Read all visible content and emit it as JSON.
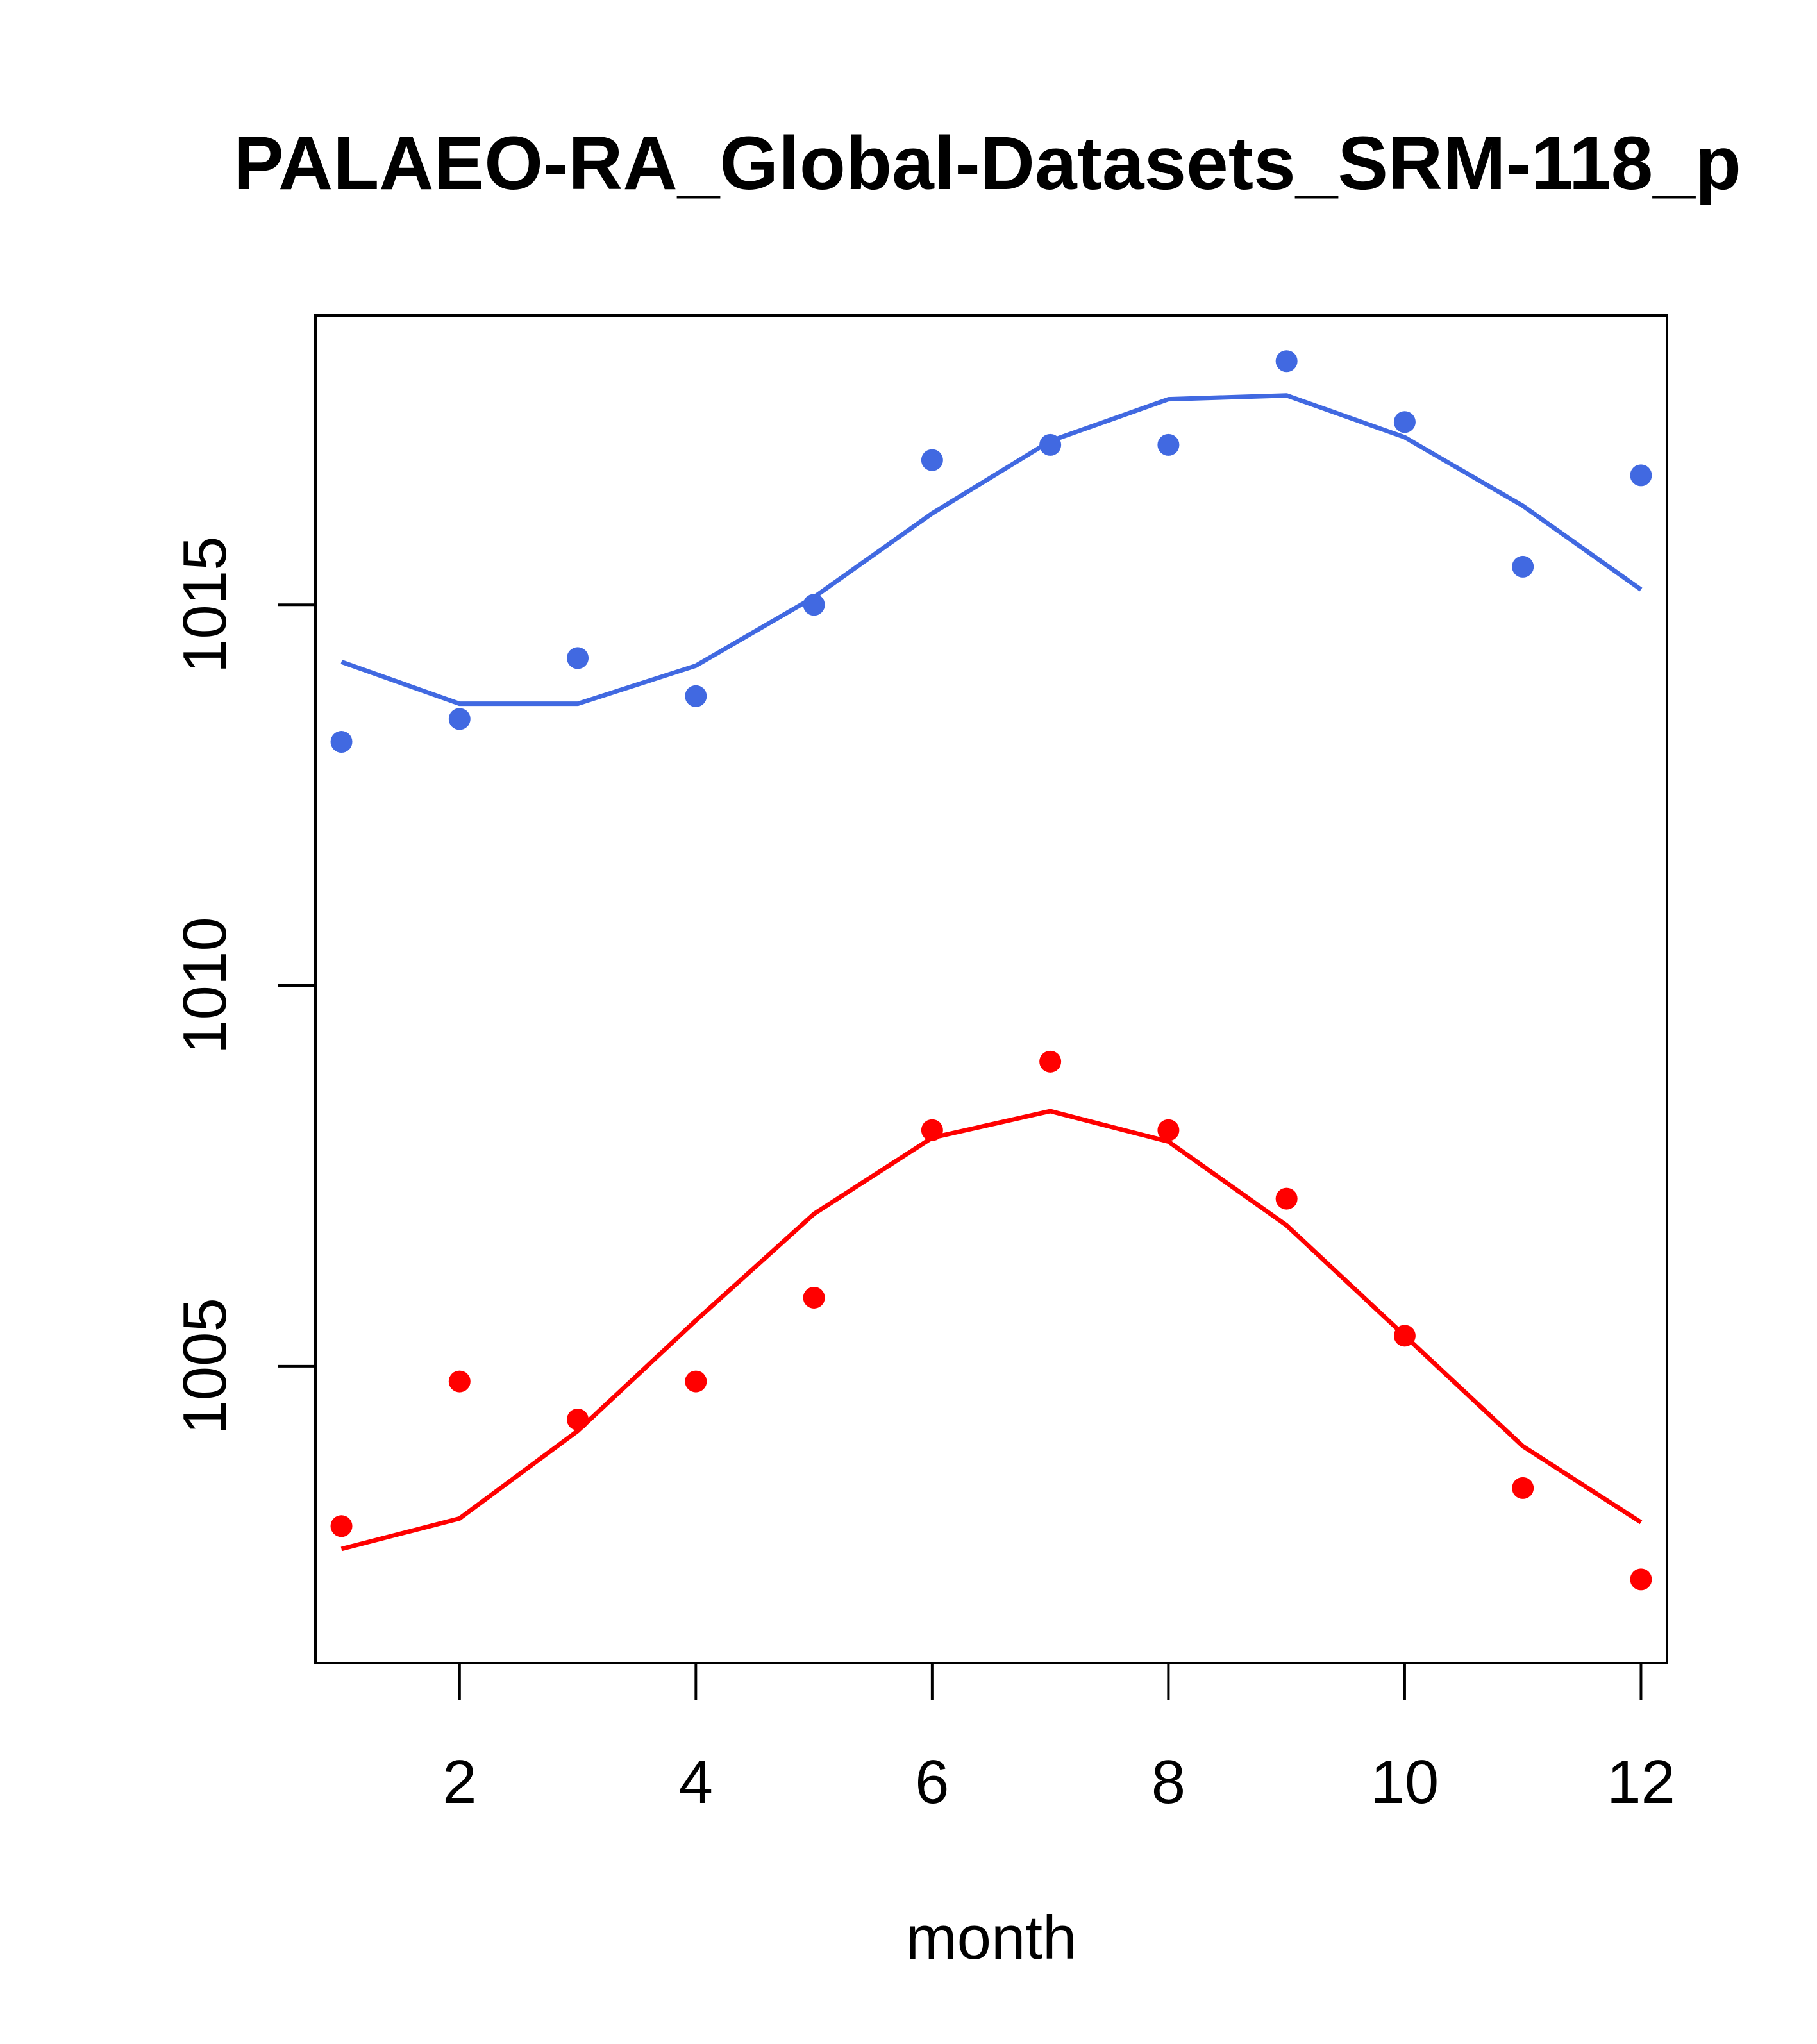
{
  "chart_data": {
    "type": "line",
    "title": "PALAEO-RA_Global-Datasets_SRM-118_p",
    "xlabel": "month",
    "ylabel": "",
    "xlim": [
      0.78,
      12.22
    ],
    "ylim": [
      1001.1,
      1018.8
    ],
    "x_ticks": [
      2,
      4,
      6,
      8,
      10,
      12
    ],
    "y_ticks": [
      1005,
      1010,
      1015
    ],
    "x_tick_labels": [
      "2",
      "4",
      "6",
      "8",
      "10",
      "12"
    ],
    "y_tick_labels": [
      "1005",
      "1010",
      "1015"
    ],
    "x": [
      1,
      2,
      3,
      4,
      5,
      6,
      7,
      8,
      9,
      10,
      11,
      12
    ],
    "series": [
      {
        "name": "blue",
        "color": "#4169E1",
        "points": [
          1013.2,
          1013.5,
          1014.3,
          1013.8,
          1015.0,
          1016.9,
          1017.1,
          1017.1,
          1018.2,
          1017.4,
          1015.5,
          1016.7
        ],
        "line": [
          1014.25,
          1013.7,
          1013.7,
          1014.2,
          1015.1,
          1016.2,
          1017.15,
          1017.7,
          1017.75,
          1017.2,
          1016.3,
          1015.2
        ]
      },
      {
        "name": "red",
        "color": "#FF0000",
        "points": [
          1002.9,
          1004.8,
          1004.3,
          1004.8,
          1005.9,
          1008.1,
          1009.0,
          1008.1,
          1007.2,
          1005.4,
          1003.4,
          1002.2
        ],
        "line": [
          1002.6,
          1003.0,
          1004.15,
          1005.6,
          1007.0,
          1008.0,
          1008.35,
          1007.95,
          1006.85,
          1005.4,
          1003.95,
          1002.95
        ]
      }
    ]
  }
}
